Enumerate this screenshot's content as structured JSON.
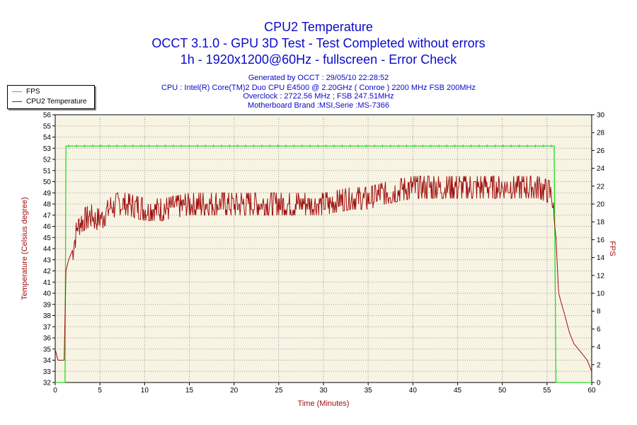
{
  "chart_data": {
    "type": "line",
    "title": "CPU2 Temperature",
    "subtitle_lines": [
      "OCCT 3.1.0 - GPU 3D Test - Test Completed without errors",
      "1h - 1920x1200@60Hz - fullscreen - Error Check"
    ],
    "info_lines": [
      "Generated by OCCT : 29/05/10 22:28:52",
      "CPU : Intel(R) Core(TM)2 Duo CPU E4500 @ 2.20GHz ( Conroe ) 2200 MHz FSB 200MHz",
      "Overclock : 2722.56 MHz ; FSB 247.51MHz",
      "Motherboard Brand :MSI,Serie :MS-7366"
    ],
    "xlabel": "Time (Minutes)",
    "ylabel": "Temperature (Celsius degree)",
    "y2label": "FPS",
    "xlim": [
      0,
      60
    ],
    "ylim": [
      32,
      56
    ],
    "y2lim": [
      0,
      30
    ],
    "x_ticks": [
      0,
      5,
      10,
      15,
      20,
      25,
      30,
      35,
      40,
      45,
      50,
      55,
      60
    ],
    "y_ticks": [
      32,
      33,
      34,
      35,
      36,
      37,
      38,
      39,
      40,
      41,
      42,
      43,
      44,
      45,
      46,
      47,
      48,
      49,
      50,
      51,
      52,
      53,
      54,
      55,
      56
    ],
    "y2_ticks": [
      0,
      2,
      4,
      6,
      8,
      10,
      12,
      14,
      16,
      18,
      20,
      22,
      24,
      26,
      28,
      30
    ],
    "grid": true,
    "legend_position": "top-left",
    "colors": {
      "fps": "#22dd22",
      "temperature": "#a01010",
      "plot_background": "#f8f4e4",
      "title": "#0a0ac8"
    },
    "series": [
      {
        "name": "FPS",
        "axis": "right",
        "x": [
          0,
          1.1,
          1.2,
          55.8,
          56.0,
          60
        ],
        "values": [
          0,
          0,
          26.5,
          26.5,
          0,
          0
        ]
      },
      {
        "name": "CPU2 Temperature",
        "axis": "left",
        "x": [
          0,
          0.3,
          0.5,
          1.0,
          1.1,
          1.2,
          1.5,
          2.0,
          2.5,
          3.0,
          4.0,
          5.0,
          6.0,
          7.0,
          8.0,
          10.0,
          12.0,
          15.0,
          20.0,
          25.0,
          30.0,
          33.0,
          35.0,
          37.0,
          40.0,
          45.0,
          50.0,
          54.0,
          55.5,
          56.0,
          56.3,
          57.0,
          57.5,
          58.0,
          58.5,
          59.0,
          59.5,
          60.0
        ],
        "values": [
          35,
          34,
          34,
          34,
          38,
          42,
          43,
          44,
          46,
          46.5,
          47,
          46.5,
          47.5,
          48,
          48,
          47.5,
          47.5,
          48,
          48,
          48,
          48,
          48.5,
          48.5,
          49,
          49.5,
          49.5,
          49.5,
          49.5,
          49,
          45,
          40,
          38,
          36.5,
          35.5,
          35,
          34.5,
          34,
          33
        ]
      }
    ]
  },
  "legend": {
    "fps_label": "FPS",
    "temp_label": "CPU2 Temperature"
  }
}
